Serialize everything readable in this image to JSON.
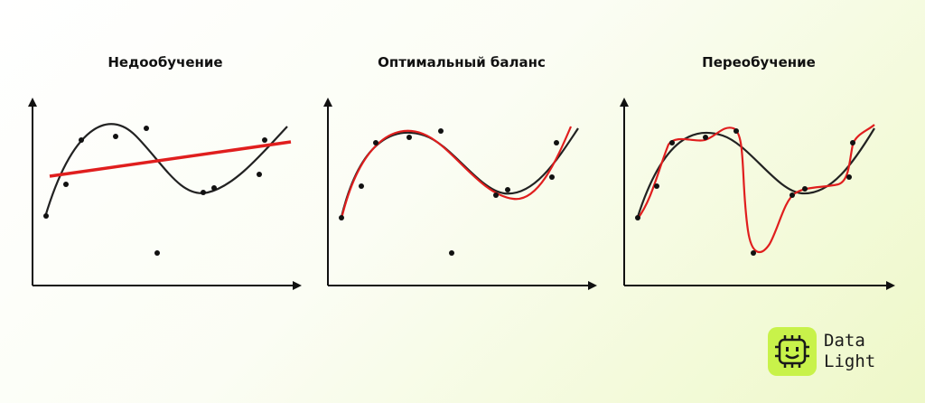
{
  "panels": [
    {
      "title": "Недообучение"
    },
    {
      "title": "Оптимальный баланс"
    },
    {
      "title": "Переобучение"
    }
  ],
  "logo": {
    "line1": "Data",
    "line2": "Light"
  },
  "colors": {
    "true_curve": "#222222",
    "fit_curve": "#e01e1e",
    "points": "#111111",
    "logo_badge": "#c8f24a"
  }
}
